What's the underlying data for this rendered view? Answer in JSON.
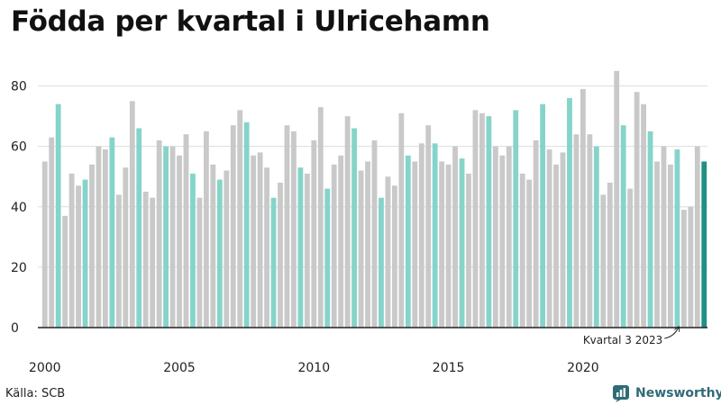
{
  "title": "Födda per kvartal i Ulricehamn",
  "source": "Källa: SCB",
  "brand": {
    "name": "Newsworthy"
  },
  "colors": {
    "bar": "#c9c9c9",
    "highlight": "#86d4c9",
    "latest": "#1f9184",
    "grid": "#dddddd",
    "text": "#222222",
    "axis": "#222222"
  },
  "chart_data": {
    "type": "bar",
    "title": "Födda per kvartal i Ulricehamn",
    "xlabel": "",
    "ylabel": "",
    "ylim": [
      0,
      90
    ],
    "yticks": [
      0,
      20,
      40,
      60,
      80
    ],
    "xticks": [
      {
        "label": "2000",
        "year": 2000
      },
      {
        "label": "2005",
        "year": 2005
      },
      {
        "label": "2010",
        "year": 2010
      },
      {
        "label": "2015",
        "year": 2015
      },
      {
        "label": "2020",
        "year": 2020
      }
    ],
    "start_year": 2000,
    "highlight_quarter": 2,
    "values": [
      55,
      63,
      74,
      37,
      51,
      47,
      49,
      54,
      60,
      59,
      63,
      44,
      53,
      75,
      66,
      45,
      43,
      62,
      60,
      60,
      57,
      64,
      51,
      43,
      65,
      54,
      49,
      52,
      67,
      72,
      68,
      57,
      58,
      53,
      43,
      48,
      67,
      65,
      53,
      51,
      62,
      73,
      46,
      54,
      57,
      70,
      66,
      52,
      55,
      62,
      43,
      50,
      47,
      71,
      57,
      55,
      61,
      67,
      61,
      55,
      54,
      60,
      56,
      51,
      72,
      71,
      70,
      60,
      57,
      60,
      72,
      51,
      49,
      62,
      74,
      59,
      54,
      58,
      76,
      64,
      79,
      64,
      60,
      44,
      48,
      85,
      67,
      46,
      78,
      74,
      65,
      55,
      60,
      54,
      59,
      39,
      40,
      60,
      55
    ],
    "annotation": "Kvartal 3 2023"
  }
}
